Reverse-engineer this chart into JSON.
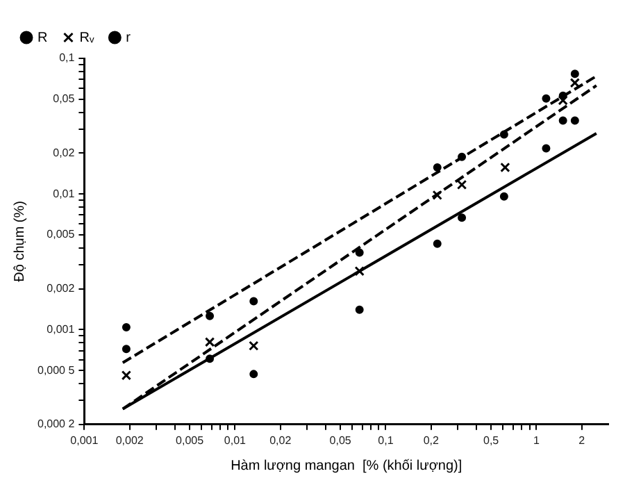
{
  "chart_data": {
    "type": "scatter",
    "xlabel": "Hàm lượng mangan  [% (khối lượng)]",
    "ylabel": "Độ chụm (%)",
    "log": "xy",
    "grid": false,
    "legend": "top left",
    "xlim": [
      0.001,
      3
    ],
    "ylim": [
      0.0002,
      0.1
    ],
    "xticks": [
      {
        "value": 0.001,
        "label": "0,001"
      },
      {
        "value": 0.002,
        "label": "0,002"
      },
      {
        "value": 0.003,
        "label": null
      },
      {
        "value": 0.004,
        "label": null
      },
      {
        "value": 0.005,
        "label": "0,005"
      },
      {
        "value": 0.006,
        "label": null
      },
      {
        "value": 0.007,
        "label": null
      },
      {
        "value": 0.008,
        "label": null
      },
      {
        "value": 0.009,
        "label": null
      },
      {
        "value": 0.01,
        "label": "0,01"
      },
      {
        "value": 0.02,
        "label": "0,02"
      },
      {
        "value": 0.03,
        "label": null
      },
      {
        "value": 0.04,
        "label": null
      },
      {
        "value": 0.05,
        "label": "0,05"
      },
      {
        "value": 0.06,
        "label": null
      },
      {
        "value": 0.07,
        "label": null
      },
      {
        "value": 0.08,
        "label": null
      },
      {
        "value": 0.09,
        "label": null
      },
      {
        "value": 0.1,
        "label": "0,1"
      },
      {
        "value": 0.2,
        "label": "0,2"
      },
      {
        "value": 0.3,
        "label": null
      },
      {
        "value": 0.4,
        "label": null
      },
      {
        "value": 0.5,
        "label": "0,5"
      },
      {
        "value": 0.6,
        "label": null
      },
      {
        "value": 0.7,
        "label": null
      },
      {
        "value": 0.8,
        "label": null
      },
      {
        "value": 0.9,
        "label": null
      },
      {
        "value": 1,
        "label": "1"
      },
      {
        "value": 2,
        "label": "2"
      }
    ],
    "yticks": [
      {
        "value": 0.0002,
        "label": "0,000 2"
      },
      {
        "value": 0.0003,
        "label": null
      },
      {
        "value": 0.0004,
        "label": null
      },
      {
        "value": 0.0005,
        "label": "0,000 5"
      },
      {
        "value": 0.0006,
        "label": null
      },
      {
        "value": 0.0007,
        "label": null
      },
      {
        "value": 0.0008,
        "label": null
      },
      {
        "value": 0.0009,
        "label": null
      },
      {
        "value": 0.001,
        "label": "0,001"
      },
      {
        "value": 0.002,
        "label": "0,002"
      },
      {
        "value": 0.003,
        "label": null
      },
      {
        "value": 0.004,
        "label": null
      },
      {
        "value": 0.005,
        "label": "0,005"
      },
      {
        "value": 0.006,
        "label": null
      },
      {
        "value": 0.007,
        "label": null
      },
      {
        "value": 0.008,
        "label": null
      },
      {
        "value": 0.009,
        "label": null
      },
      {
        "value": 0.01,
        "label": "0,01"
      },
      {
        "value": 0.02,
        "label": "0,02"
      },
      {
        "value": 0.03,
        "label": null
      },
      {
        "value": 0.04,
        "label": null
      },
      {
        "value": 0.05,
        "label": "0,05"
      },
      {
        "value": 0.06,
        "label": null
      },
      {
        "value": 0.07,
        "label": null
      },
      {
        "value": 0.08,
        "label": null
      },
      {
        "value": 0.09,
        "label": null
      },
      {
        "value": 0.1,
        "label": "0,1"
      }
    ],
    "series": [
      {
        "type": "line",
        "line_style": "dashed",
        "color": "#000000",
        "x": [
          0.0018,
          2.5
        ],
        "values": [
          0.00057,
          0.074
        ]
      },
      {
        "type": "line",
        "line_style": "dashed",
        "color": "#000000",
        "x": [
          0.0018,
          2.5
        ],
        "values": [
          0.00026,
          0.063
        ]
      },
      {
        "type": "line",
        "line_style": "solid",
        "color": "#000000",
        "x": [
          0.0018,
          2.5
        ],
        "values": [
          0.00026,
          0.028
        ]
      },
      {
        "name": "R",
        "marker": "circle",
        "color": "#000000",
        "x": [
          0.0019,
          0.0068,
          0.0133,
          0.067,
          0.22,
          0.32,
          0.61,
          1.5,
          1.8
        ],
        "values": [
          0.00104,
          0.00126,
          0.00162,
          0.0037,
          0.0157,
          0.0188,
          0.0275,
          0.053,
          0.077
        ]
      },
      {
        "name": "Rᵥ",
        "marker": "cross",
        "color": "#000000",
        "x": [
          0.0019,
          0.0068,
          0.0133,
          0.067,
          0.22,
          0.32,
          0.62,
          1.5,
          1.8
        ],
        "values": [
          0.00046,
          0.00081,
          0.00076,
          0.0027,
          0.0098,
          0.0117,
          0.0157,
          0.049,
          0.066
        ]
      },
      {
        "name": "r",
        "marker": "circle",
        "color": "#000000",
        "x": [
          0.0019,
          0.0068,
          0.0133,
          0.067,
          0.22,
          0.32,
          0.61,
          1.16,
          1.16,
          1.5,
          1.8
        ],
        "values": [
          0.00072,
          0.00061,
          0.00047,
          0.0014,
          0.0043,
          0.0067,
          0.0096,
          0.0217,
          0.0506,
          0.0348,
          0.0348
        ]
      }
    ]
  }
}
